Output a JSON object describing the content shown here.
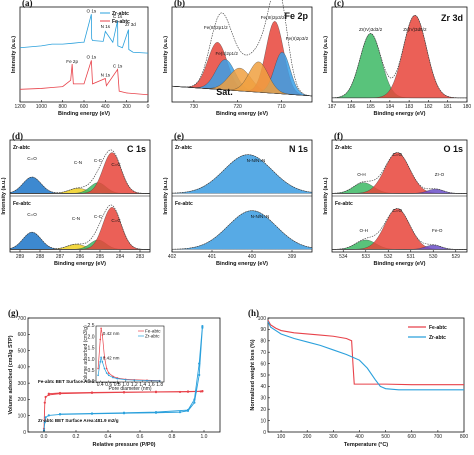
{
  "chart_data": [
    {
      "panel": "(a)",
      "type": "line",
      "xlabel": "Binding energy (eV)",
      "ylabel": "Intensity (a.u.)",
      "x_ticks": [
        "1200",
        "1000",
        "800",
        "600",
        "400",
        "200",
        "0"
      ],
      "xlim": [
        1200,
        0
      ],
      "legend": [
        "Zr-abtc",
        "Fe-abtc"
      ],
      "peak_labels": {
        "Zr-abtc": [
          "O 1s",
          "N 1s",
          "C 1s",
          "Zr 3d"
        ],
        "Fe-abtc": [
          "Fe 2p",
          "O 1s",
          "N 1s",
          "C 1s"
        ]
      },
      "series": [
        {
          "name": "Zr-abtc",
          "x": [
            1200,
            1000,
            900,
            800,
            700,
            620,
            600,
            531,
            528,
            520,
            420,
            400,
            330,
            285,
            283,
            240,
            183,
            180,
            140,
            0
          ],
          "y": [
            0.6,
            0.62,
            0.64,
            0.64,
            0.65,
            0.66,
            0.66,
            0.97,
            0.7,
            0.68,
            0.67,
            0.78,
            0.66,
            0.9,
            0.62,
            0.6,
            0.8,
            0.58,
            0.55,
            0.54
          ]
        },
        {
          "name": "Fe-abtc",
          "x": [
            1200,
            1000,
            900,
            800,
            725,
            711,
            700,
            600,
            531,
            520,
            400,
            390,
            285,
            270,
            200,
            0
          ],
          "y": [
            0.14,
            0.15,
            0.16,
            0.17,
            0.24,
            0.42,
            0.2,
            0.2,
            0.46,
            0.2,
            0.26,
            0.18,
            0.36,
            0.12,
            0.1,
            0.08
          ]
        }
      ]
    },
    {
      "panel": "(b)",
      "type": "line",
      "title": "Fe 2p",
      "xlabel": "Binding energy (eV)",
      "ylabel": "Intensity (a.u.)",
      "x_ticks": [
        "730",
        "720",
        "710"
      ],
      "xlim": [
        735,
        703
      ],
      "annotations": [
        "Fe(III)2p1/2",
        "Fe(III)2p3/2",
        "Fe(II)2p1/2",
        "Fe(II)2p3/2",
        "Sat."
      ],
      "components": [
        {
          "label": "Fe(III)2p1/2",
          "center": 724.6,
          "height": 0.62,
          "color": "#e8443a"
        },
        {
          "label": "Fe(II)2p1/2",
          "center": 722.8,
          "height": 0.4,
          "color": "#3aa0e8"
        },
        {
          "label": "Sat.",
          "center": 719.5,
          "height": 0.3,
          "color": "#f0a040"
        },
        {
          "label": "Fe(III)2p3/2",
          "center": 711.5,
          "height": 0.95,
          "color": "#e8443a"
        },
        {
          "label": "Fe(II)2p3/2",
          "center": 709.8,
          "height": 0.55,
          "color": "#3aa0e8"
        },
        {
          "label": "Sat.",
          "center": 715.2,
          "height": 0.4,
          "color": "#f0a040"
        }
      ]
    },
    {
      "panel": "(c)",
      "type": "line",
      "title": "Zr 3d",
      "xlabel": "Binding energy (eV)",
      "ylabel": "Intensity (a.u.)",
      "x_ticks": [
        "187",
        "186",
        "185",
        "184",
        "183",
        "182",
        "181",
        "180"
      ],
      "xlim": [
        187,
        180
      ],
      "components": [
        {
          "label": "Zr(IV)3d3/2",
          "center": 185.0,
          "height": 0.78,
          "color": "#3cb964"
        },
        {
          "label": "Zr(IV)3d5/2",
          "center": 182.7,
          "height": 1.0,
          "color": "#e8443a"
        }
      ]
    },
    {
      "panel": "(d)",
      "type": "line",
      "title": "C 1s",
      "xlabel": "Binding energy (eV)",
      "ylabel": "Intensity (a.u.)",
      "x_ticks": [
        "289",
        "288",
        "287",
        "286",
        "285",
        "284",
        "283"
      ],
      "xlim": [
        289.5,
        282.5
      ],
      "subpanels": [
        {
          "name": "Zr-abtc",
          "components": [
            {
              "label": "C=O",
              "center": 288.4,
              "height": 0.38,
              "color": "#1b74c8"
            },
            {
              "label": "C-N",
              "center": 286.1,
              "height": 0.12,
              "color": "#f0d020"
            },
            {
              "label": "C-C",
              "center": 285.1,
              "height": 0.25,
              "color": "#3cb964"
            },
            {
              "label": "C=C",
              "center": 284.4,
              "height": 0.95,
              "color": "#e8443a"
            }
          ]
        },
        {
          "name": "Fe-abtc",
          "components": [
            {
              "label": "C=O",
              "center": 288.4,
              "height": 0.4,
              "color": "#1b74c8"
            },
            {
              "label": "C-N",
              "center": 286.2,
              "height": 0.12,
              "color": "#f0d020"
            },
            {
              "label": "C-C",
              "center": 285.1,
              "height": 0.22,
              "color": "#3cb964"
            },
            {
              "label": "C=C",
              "center": 284.4,
              "height": 0.98,
              "color": "#e8443a"
            }
          ]
        }
      ]
    },
    {
      "panel": "(e)",
      "type": "line",
      "title": "N 1s",
      "xlabel": "Binding energy (eV)",
      "ylabel": "Intensity (a.u.)",
      "x_ticks": [
        "402",
        "401",
        "400",
        "399"
      ],
      "xlim": [
        402,
        398.5
      ],
      "subpanels": [
        {
          "name": "Zr-abtc",
          "components": [
            {
              "label": "N-N/N=N",
              "center": 400.1,
              "height": 0.9,
              "color": "#3a9be0"
            }
          ]
        },
        {
          "name": "Fe-abtc",
          "components": [
            {
              "label": "N-N/N=N",
              "center": 400.0,
              "height": 0.9,
              "color": "#3a9be0"
            }
          ]
        }
      ]
    },
    {
      "panel": "(f)",
      "type": "line",
      "title": "O 1s",
      "xlabel": "Binding energy (eV)",
      "ylabel": "Intensity (a.u.)",
      "x_ticks": [
        "534",
        "533",
        "532",
        "531",
        "530",
        "529"
      ],
      "xlim": [
        534.5,
        528.5
      ],
      "subpanels": [
        {
          "name": "Zr-abtc",
          "components": [
            {
              "label": "O-H",
              "center": 533.1,
              "height": 0.25,
              "color": "#3cb964"
            },
            {
              "label": "C=O",
              "center": 531.6,
              "height": 0.95,
              "color": "#e8443a"
            },
            {
              "label": "Zr-O",
              "center": 529.9,
              "height": 0.1,
              "color": "#6a4ec8"
            }
          ]
        },
        {
          "name": "Fe-abtc",
          "components": [
            {
              "label": "O-H",
              "center": 533.0,
              "height": 0.22,
              "color": "#3cb964"
            },
            {
              "label": "C=O",
              "center": 531.6,
              "height": 0.95,
              "color": "#e8443a"
            },
            {
              "label": "Fe-O",
              "center": 530.0,
              "height": 0.1,
              "color": "#6a4ec8"
            }
          ]
        }
      ]
    },
    {
      "panel": "(g)",
      "type": "line",
      "xlabel": "Relative pressure (P/P0)",
      "ylabel": "Volume adsorbed (cm3/g STP)",
      "xlim": [
        -0.1,
        1.1
      ],
      "ylim": [
        0,
        700
      ],
      "x_ticks": [
        "0.0",
        "0.2",
        "0.4",
        "0.6",
        "0.8",
        "1.0"
      ],
      "y_ticks": [
        "0",
        "100",
        "200",
        "300",
        "400",
        "500",
        "600",
        "700"
      ],
      "annotations": [
        "Fe-abtc BET Surface Area:971.4 m2/g",
        "Zr-abtc BET Surface Area:481.9 m2/g"
      ],
      "series": [
        {
          "name": "Fe-abtc",
          "x": [
            0.0,
            0.005,
            0.01,
            0.03,
            0.1,
            0.3,
            0.5,
            0.7,
            0.85,
            0.9,
            0.95,
            0.98,
            0.99,
            0.99,
            0.95,
            0.9,
            0.7,
            0.5,
            0.3,
            0.1,
            0.03
          ],
          "y": [
            20,
            180,
            215,
            228,
            235,
            240,
            243,
            245,
            246,
            247,
            248,
            249,
            250,
            251,
            250,
            249,
            247,
            245,
            243,
            240,
            235
          ]
        },
        {
          "name": "Zr-abtc",
          "x": [
            0.0,
            0.005,
            0.01,
            0.03,
            0.1,
            0.3,
            0.5,
            0.7,
            0.85,
            0.9,
            0.94,
            0.97,
            0.99,
            0.99,
            0.97,
            0.94,
            0.9,
            0.7,
            0.5,
            0.3,
            0.1
          ],
          "y": [
            10,
            60,
            90,
            102,
            108,
            112,
            115,
            118,
            122,
            130,
            180,
            350,
            640,
            650,
            420,
            200,
            135,
            122,
            118,
            114,
            110
          ]
        }
      ],
      "inset": {
        "xlabel": "Pore diameter (nm)",
        "ylabel": "Volume adsorbed (cm3/g)",
        "x_ticks": [
          "0.4",
          "0.6",
          "0.8",
          "1.0",
          "1.2",
          "1.4",
          "1.6",
          "1.8"
        ],
        "y_ticks": [
          "0.0",
          "0.5",
          "1.0",
          "1.5",
          "2.0",
          "2.5"
        ],
        "xlim": [
          0.3,
          1.9
        ],
        "ylim": [
          0,
          2.5
        ],
        "legend": [
          "Fe-abtc",
          "Zr-abtc"
        ],
        "annotations": [
          "0.42 nm",
          "0.42 nm"
        ],
        "series": [
          {
            "name": "Fe-abtc",
            "x": [
              0.35,
              0.4,
              0.42,
              0.45,
              0.5,
              0.55,
              0.6,
              0.7,
              0.8,
              1.0,
              1.2,
              1.5,
              1.8
            ],
            "y": [
              0.6,
              1.9,
              2.4,
              2.1,
              1.1,
              0.6,
              0.4,
              0.25,
              0.18,
              0.12,
              0.1,
              0.08,
              0.06
            ]
          },
          {
            "name": "Zr-abtc",
            "x": [
              0.35,
              0.4,
              0.42,
              0.45,
              0.5,
              0.55,
              0.6,
              0.7,
              0.8,
              1.0,
              1.2,
              1.5,
              1.8
            ],
            "y": [
              0.3,
              0.9,
              1.1,
              0.9,
              0.6,
              0.4,
              0.3,
              0.2,
              0.15,
              0.1,
              0.08,
              0.06,
              0.05
            ]
          }
        ]
      }
    },
    {
      "panel": "(h)",
      "type": "line",
      "xlabel": "Temperature (°C)",
      "ylabel": "Normalized weight loss (%)",
      "xlim": [
        50,
        800
      ],
      "ylim": [
        0,
        100
      ],
      "x_ticks": [
        "100",
        "200",
        "300",
        "400",
        "500",
        "600",
        "700",
        "800"
      ],
      "y_ticks": [
        "0",
        "10",
        "20",
        "30",
        "40",
        "50",
        "60",
        "70",
        "80",
        "90",
        "100"
      ],
      "legend": [
        "Fe-abtc",
        "Zr-abtc"
      ],
      "series": [
        {
          "name": "Fe-abtc",
          "x": [
            50,
            60,
            80,
            100,
            150,
            200,
            250,
            300,
            350,
            370,
            375,
            380,
            400,
            500,
            600,
            700,
            800
          ],
          "y": [
            98,
            94,
            91,
            89,
            87,
            86,
            85,
            84,
            82,
            80,
            60,
            42,
            42,
            42,
            41.5,
            41.5,
            41.5
          ]
        },
        {
          "name": "Zr-abtc",
          "x": [
            50,
            60,
            80,
            100,
            150,
            200,
            250,
            300,
            350,
            400,
            430,
            460,
            480,
            500,
            550,
            600,
            700,
            800
          ],
          "y": [
            97,
            92,
            89,
            86,
            82,
            79,
            76,
            72,
            68,
            63,
            56,
            46,
            40,
            38,
            37,
            37,
            37,
            37
          ]
        }
      ]
    }
  ],
  "colors": {
    "fe": "#e8424a",
    "zr": "#2aa0dc",
    "dark_red": "#c0392b",
    "blue_text": "#1f8fd6"
  }
}
